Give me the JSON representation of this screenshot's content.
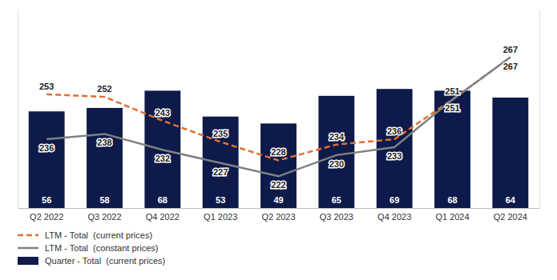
{
  "chart_data": {
    "type": "bar",
    "categories": [
      "Q2 2022",
      "Q3 2022",
      "Q4 2022",
      "Q1 2023",
      "Q2 2023",
      "Q3 2023",
      "Q4 2023",
      "Q1 2024",
      "Q2 2024"
    ],
    "series": [
      {
        "name": "LTM - Total  (current prices)",
        "type": "line",
        "axis": "y2",
        "color": "#e07030",
        "line_style": "dashed",
        "values": [
          253,
          252,
          243,
          235,
          228,
          234,
          236,
          251,
          267
        ]
      },
      {
        "name": "LTM - Total  (constant prices)",
        "type": "line",
        "axis": "y2",
        "color": "#808080",
        "line_style": "solid",
        "values": [
          236,
          238,
          232,
          227,
          222,
          230,
          233,
          251,
          267
        ]
      },
      {
        "name": "Quarter - Total  (current prices)",
        "type": "bar",
        "color": "#0d1a4a",
        "values": [
          56,
          58,
          68,
          53,
          49,
          65,
          69,
          68,
          64
        ]
      }
    ],
    "ylim": [
      0,
      115
    ],
    "y2lim": [
      210,
      285
    ],
    "data_labels": true,
    "tick_labels": "x",
    "legend": "bottom"
  }
}
